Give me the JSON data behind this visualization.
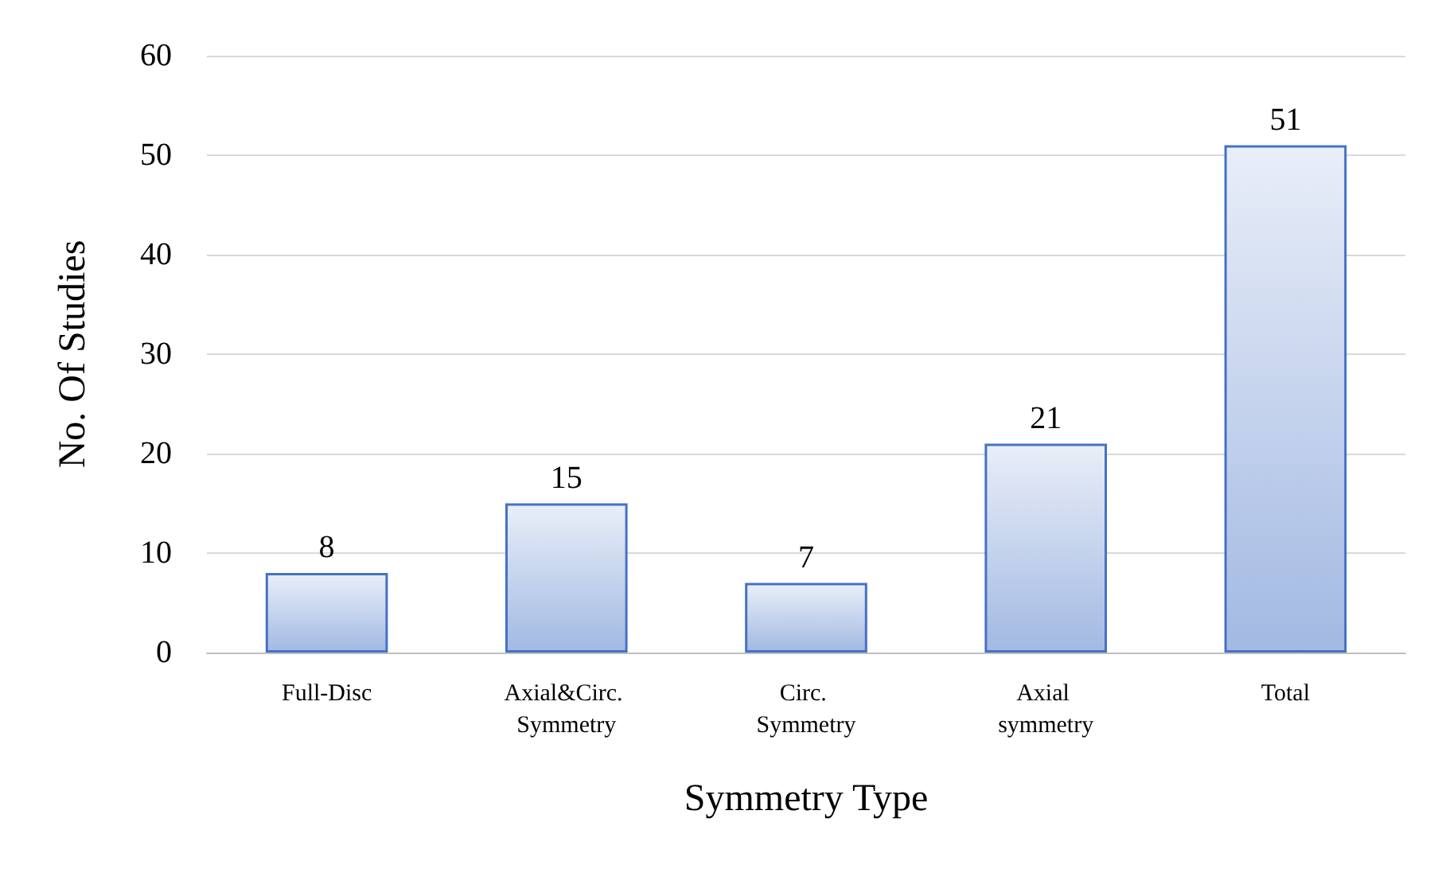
{
  "chart_data": {
    "type": "bar",
    "xlabel": "Symmetry Type",
    "ylabel": "No. Of Studies",
    "categories": [
      "Full-Disc",
      "Axial&Circ. Symmetry",
      "Circ. Symmetry",
      "Axial symmetry",
      "Total"
    ],
    "values": [
      8,
      15,
      7,
      21,
      51
    ],
    "color": "#4472c4",
    "ylim": [
      0,
      60
    ],
    "yticks": [
      0,
      10,
      20,
      30,
      40,
      50,
      60
    ],
    "grid": "y",
    "data_labels": true
  }
}
